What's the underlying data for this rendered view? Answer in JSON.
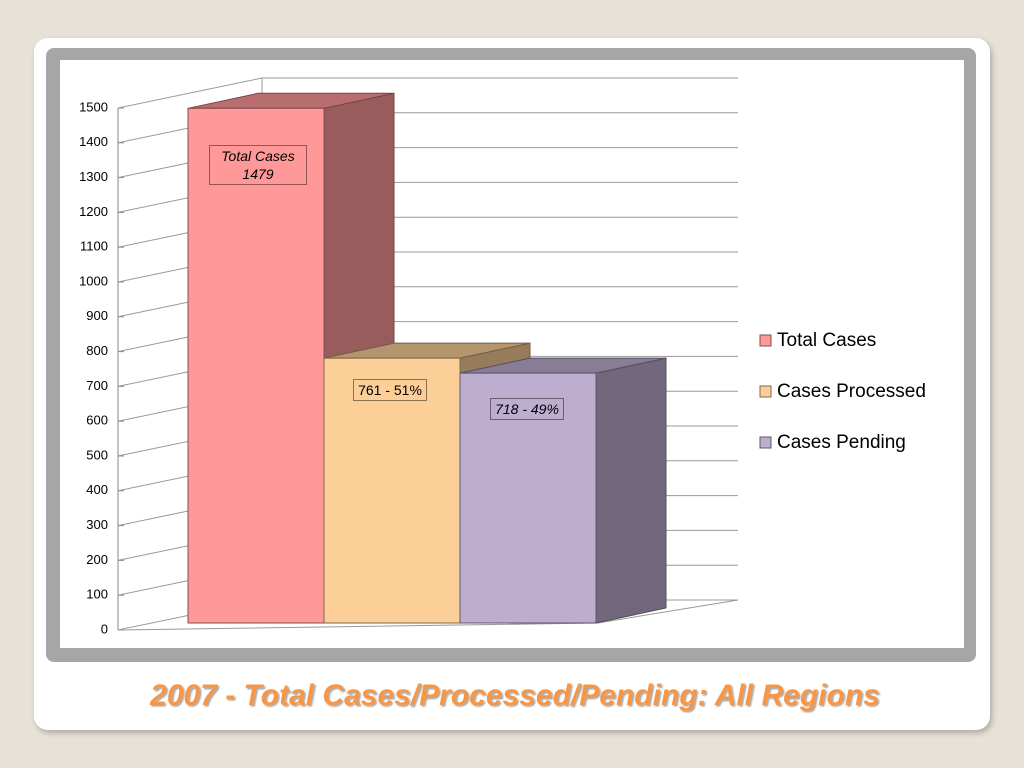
{
  "chart_data": {
    "type": "bar3d",
    "title": "2007 - Total Cases/Processed/Pending: All Regions",
    "series": [
      {
        "name": "Total Cases",
        "color": "#ff9999",
        "values": [
          1479
        ],
        "value_labels": [
          "Total Cases 1479"
        ]
      },
      {
        "name": "Cases Processed",
        "color": "#fccf98",
        "values": [
          761
        ],
        "value_labels": [
          "761 - 51%"
        ]
      },
      {
        "name": "Cases Pending",
        "color": "#bdaed0",
        "values": [
          718
        ],
        "value_labels": [
          "718 - 49%"
        ]
      }
    ],
    "ylim": [
      0,
      1500
    ],
    "yticks": [
      0,
      100,
      200,
      300,
      400,
      500,
      600,
      700,
      800,
      900,
      1000,
      1100,
      1200,
      1300,
      1400,
      1500
    ],
    "grid": true,
    "legend": "right"
  }
}
